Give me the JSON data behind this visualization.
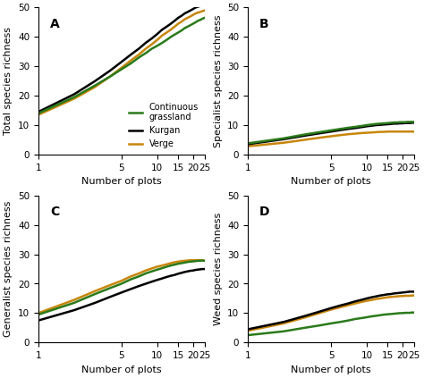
{
  "colors": {
    "green": "#2a7a1a",
    "black": "#000000",
    "orange": "#c8860a"
  },
  "line_width": 1.8,
  "panels": [
    {
      "label": "A",
      "ylabel": "Total species richness",
      "ylim": [
        0,
        50
      ],
      "yticks": [
        0,
        10,
        20,
        30,
        40,
        50
      ],
      "curves": {
        "green": [
          14.0,
          19.5,
          23.5,
          26.5,
          29.0,
          31.0,
          33.0,
          34.5,
          36.0,
          37.0,
          38.0,
          39.0,
          40.0,
          40.8,
          41.5,
          42.2,
          43.0,
          43.5,
          44.0,
          44.5,
          45.0,
          45.5,
          45.8,
          46.2,
          46.5
        ],
        "black": [
          14.5,
          20.5,
          25.0,
          28.5,
          31.5,
          34.0,
          36.0,
          38.0,
          39.5,
          41.0,
          42.5,
          43.5,
          44.5,
          45.5,
          46.5,
          47.2,
          48.0,
          48.5,
          49.0,
          49.5,
          50.0,
          50.3,
          50.5,
          50.7,
          51.0
        ],
        "orange": [
          13.5,
          19.0,
          23.0,
          26.5,
          29.5,
          32.0,
          34.0,
          36.0,
          37.5,
          39.0,
          40.5,
          41.5,
          42.5,
          43.5,
          44.5,
          45.2,
          46.0,
          46.5,
          47.0,
          47.5,
          48.0,
          48.3,
          48.5,
          48.8,
          49.0
        ]
      },
      "legend": true
    },
    {
      "label": "B",
      "ylabel": "Specialist species richness",
      "ylim": [
        0,
        50
      ],
      "yticks": [
        0,
        10,
        20,
        30,
        40,
        50
      ],
      "curves": {
        "green": [
          3.8,
          5.5,
          6.8,
          7.6,
          8.2,
          8.7,
          9.1,
          9.4,
          9.7,
          10.0,
          10.2,
          10.4,
          10.5,
          10.6,
          10.7,
          10.8,
          10.9,
          10.9,
          11.0,
          11.0,
          11.0,
          11.1,
          11.1,
          11.1,
          11.1
        ],
        "black": [
          3.5,
          5.2,
          6.4,
          7.2,
          7.8,
          8.3,
          8.7,
          9.0,
          9.3,
          9.6,
          9.8,
          10.0,
          10.1,
          10.2,
          10.3,
          10.4,
          10.5,
          10.5,
          10.6,
          10.6,
          10.7,
          10.7,
          10.7,
          10.8,
          10.8
        ],
        "orange": [
          2.8,
          4.0,
          5.0,
          5.7,
          6.2,
          6.6,
          6.9,
          7.1,
          7.3,
          7.4,
          7.5,
          7.6,
          7.7,
          7.7,
          7.8,
          7.8,
          7.8,
          7.8,
          7.8,
          7.8,
          7.8,
          7.8,
          7.8,
          7.8,
          7.8
        ]
      },
      "legend": false
    },
    {
      "label": "C",
      "ylabel": "Generalist species richness",
      "ylim": [
        0,
        50
      ],
      "yticks": [
        0,
        10,
        20,
        30,
        40,
        50
      ],
      "curves": {
        "green": [
          9.5,
          13.5,
          16.5,
          18.5,
          20.0,
          21.5,
          22.5,
          23.5,
          24.2,
          24.8,
          25.3,
          25.8,
          26.2,
          26.5,
          26.8,
          27.0,
          27.2,
          27.4,
          27.5,
          27.6,
          27.7,
          27.8,
          27.8,
          27.9,
          27.8
        ],
        "black": [
          7.5,
          11.0,
          13.5,
          15.5,
          17.0,
          18.2,
          19.2,
          20.0,
          20.7,
          21.3,
          21.8,
          22.3,
          22.7,
          23.0,
          23.4,
          23.7,
          24.0,
          24.2,
          24.4,
          24.5,
          24.7,
          24.8,
          24.9,
          25.0,
          25.0
        ],
        "orange": [
          10.0,
          14.5,
          17.5,
          19.5,
          21.0,
          22.5,
          23.5,
          24.5,
          25.2,
          25.8,
          26.2,
          26.6,
          27.0,
          27.3,
          27.5,
          27.7,
          27.8,
          27.9,
          28.0,
          28.0,
          28.0,
          28.0,
          28.0,
          28.0,
          27.8
        ]
      },
      "legend": false
    },
    {
      "label": "D",
      "ylabel": "Weed species richness",
      "ylim": [
        0,
        50
      ],
      "yticks": [
        0,
        10,
        20,
        30,
        40,
        50
      ],
      "curves": {
        "green": [
          2.5,
          3.8,
          5.0,
          5.8,
          6.5,
          7.0,
          7.5,
          8.0,
          8.3,
          8.6,
          8.9,
          9.1,
          9.3,
          9.5,
          9.6,
          9.7,
          9.8,
          9.9,
          10.0,
          10.0,
          10.1,
          10.1,
          10.1,
          10.2,
          10.2
        ],
        "black": [
          4.5,
          7.0,
          9.0,
          10.5,
          11.7,
          12.6,
          13.3,
          14.0,
          14.5,
          15.0,
          15.4,
          15.7,
          16.0,
          16.2,
          16.4,
          16.5,
          16.7,
          16.8,
          16.9,
          17.0,
          17.1,
          17.2,
          17.3,
          17.3,
          17.3
        ],
        "orange": [
          4.0,
          6.5,
          8.5,
          10.0,
          11.2,
          12.0,
          12.7,
          13.3,
          13.8,
          14.2,
          14.5,
          14.8,
          15.0,
          15.2,
          15.4,
          15.5,
          15.6,
          15.7,
          15.8,
          15.8,
          15.9,
          15.9,
          15.9,
          16.0,
          16.0
        ]
      },
      "legend": false
    }
  ],
  "xticks": [
    1,
    5,
    10,
    15,
    20,
    25
  ],
  "xlabel": "Number of plots",
  "legend_labels": {
    "green": "Continuous\ngrassland",
    "black": "Kurgan",
    "orange": "Verge"
  }
}
